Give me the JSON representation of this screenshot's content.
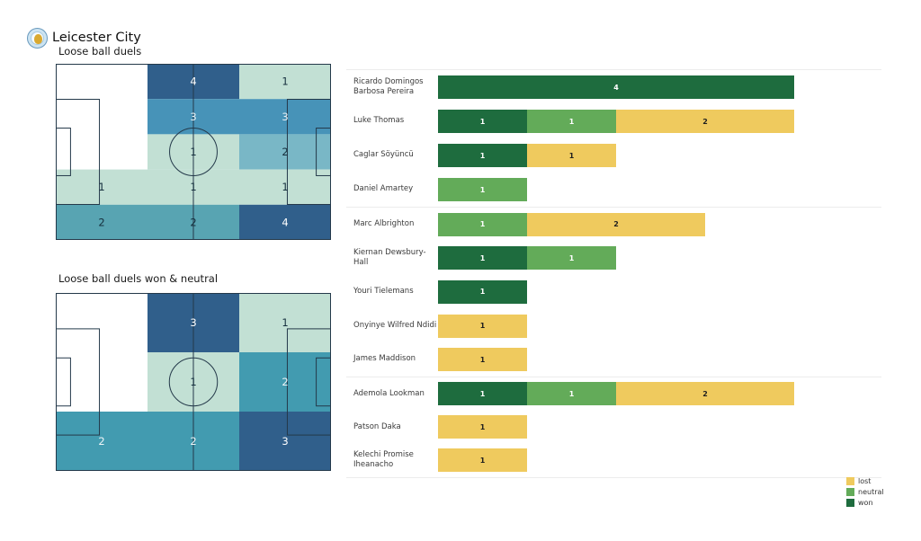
{
  "header": {
    "team": "Leicester City",
    "badge_icon": "leicester-city-crest-icon"
  },
  "colors": {
    "won": {
      "bg": "#1e6c3e",
      "text": "#ffffff"
    },
    "neutral": {
      "bg": "#63ab59",
      "text": "#ffffff"
    },
    "lost": {
      "bg": "#efca5e",
      "text": "#1f1f1f"
    },
    "pitch_line": "#24394a",
    "separator": "#ececec"
  },
  "chart_data": [
    {
      "type": "heatmap",
      "title": "Loose ball duels",
      "grid": {
        "rows": 5,
        "cols": 3
      },
      "zones": [
        {
          "row": 0,
          "col": 1,
          "value": 4,
          "color": "#305f8b",
          "text_color": "#ffffff"
        },
        {
          "row": 0,
          "col": 2,
          "value": 1,
          "color": "#c2e0d4",
          "text_color": "#16303e"
        },
        {
          "row": 1,
          "col": 1,
          "value": 3,
          "color": "#4793b8",
          "text_color": "#eaf2f7"
        },
        {
          "row": 1,
          "col": 2,
          "value": 3,
          "color": "#4793b8",
          "text_color": "#eaf2f7"
        },
        {
          "row": 2,
          "col": 1,
          "value": 1,
          "color": "#c2e0d4",
          "text_color": "#16303e"
        },
        {
          "row": 2,
          "col": 2,
          "value": 2,
          "color": "#79b7c6",
          "text_color": "#16303e"
        },
        {
          "row": 3,
          "col": 0,
          "value": 1,
          "color": "#c2e0d4",
          "text_color": "#16303e"
        },
        {
          "row": 3,
          "col": 1,
          "value": 1,
          "color": "#c2e0d4",
          "text_color": "#16303e"
        },
        {
          "row": 3,
          "col": 2,
          "value": 1,
          "color": "#c2e0d4",
          "text_color": "#16303e"
        },
        {
          "row": 4,
          "col": 0,
          "value": 2,
          "color": "#58a4b2",
          "text_color": "#16303e"
        },
        {
          "row": 4,
          "col": 1,
          "value": 2,
          "color": "#58a4b2",
          "text_color": "#16303e"
        },
        {
          "row": 4,
          "col": 2,
          "value": 4,
          "color": "#305f8b",
          "text_color": "#ffffff"
        }
      ]
    },
    {
      "type": "heatmap",
      "title": "Loose ball duels won & neutral",
      "grid": {
        "rows": 3,
        "cols": 3
      },
      "zones": [
        {
          "row": 0,
          "col": 1,
          "value": 3,
          "color": "#305f8b",
          "text_color": "#ffffff"
        },
        {
          "row": 0,
          "col": 2,
          "value": 1,
          "color": "#c2e0d4",
          "text_color": "#16303e"
        },
        {
          "row": 1,
          "col": 1,
          "value": 1,
          "color": "#c2e0d4",
          "text_color": "#16303e"
        },
        {
          "row": 1,
          "col": 2,
          "value": 2,
          "color": "#429bb0",
          "text_color": "#eef5f8"
        },
        {
          "row": 2,
          "col": 0,
          "value": 2,
          "color": "#429bb0",
          "text_color": "#eef5f8"
        },
        {
          "row": 2,
          "col": 1,
          "value": 2,
          "color": "#429bb0",
          "text_color": "#eef5f8"
        },
        {
          "row": 2,
          "col": 2,
          "value": 3,
          "color": "#305f8b",
          "text_color": "#ffffff"
        }
      ]
    },
    {
      "type": "bar",
      "orientation": "horizontal",
      "stacked": true,
      "xlim": [
        0,
        4
      ],
      "segment_order": [
        "won",
        "neutral",
        "lost"
      ],
      "groups": [
        {
          "players": [
            {
              "name": "Ricardo Domingos Barbosa Pereira",
              "name_lines": [
                "Ricardo Domingos",
                "Barbosa Pereira"
              ],
              "won": 4,
              "neutral": 0,
              "lost": 0
            },
            {
              "name": "Luke Thomas",
              "name_lines": [
                "Luke Thomas"
              ],
              "won": 1,
              "neutral": 1,
              "lost": 2
            },
            {
              "name": "Caglar Söyüncü",
              "name_lines": [
                "Caglar Söyüncü"
              ],
              "won": 1,
              "neutral": 0,
              "lost": 1
            },
            {
              "name": "Daniel Amartey",
              "name_lines": [
                "Daniel Amartey"
              ],
              "won": 0,
              "neutral": 1,
              "lost": 0
            }
          ]
        },
        {
          "players": [
            {
              "name": "Marc Albrighton",
              "name_lines": [
                "Marc Albrighton"
              ],
              "won": 0,
              "neutral": 1,
              "lost": 2
            },
            {
              "name": "Kiernan Dewsbury-Hall",
              "name_lines": [
                "Kiernan Dewsbury-Hall"
              ],
              "won": 1,
              "neutral": 1,
              "lost": 0
            },
            {
              "name": "Youri Tielemans",
              "name_lines": [
                "Youri Tielemans"
              ],
              "won": 1,
              "neutral": 0,
              "lost": 0
            },
            {
              "name": "Onyinye Wilfred Ndidi",
              "name_lines": [
                "Onyinye Wilfred Ndidi"
              ],
              "won": 0,
              "neutral": 0,
              "lost": 1
            },
            {
              "name": "James Maddison",
              "name_lines": [
                "James Maddison"
              ],
              "won": 0,
              "neutral": 0,
              "lost": 1
            }
          ]
        },
        {
          "players": [
            {
              "name": "Ademola Lookman",
              "name_lines": [
                "Ademola Lookman"
              ],
              "won": 1,
              "neutral": 1,
              "lost": 2
            },
            {
              "name": "Patson Daka",
              "name_lines": [
                "Patson Daka"
              ],
              "won": 0,
              "neutral": 0,
              "lost": 1
            },
            {
              "name": "Kelechi Promise Iheanacho",
              "name_lines": [
                "Kelechi Promise",
                "Iheanacho"
              ],
              "won": 0,
              "neutral": 0,
              "lost": 1
            }
          ]
        }
      ]
    }
  ],
  "legend": {
    "items": [
      {
        "label": "lost",
        "key": "lost"
      },
      {
        "label": "neutral",
        "key": "neutral"
      },
      {
        "label": "won",
        "key": "won"
      }
    ]
  }
}
